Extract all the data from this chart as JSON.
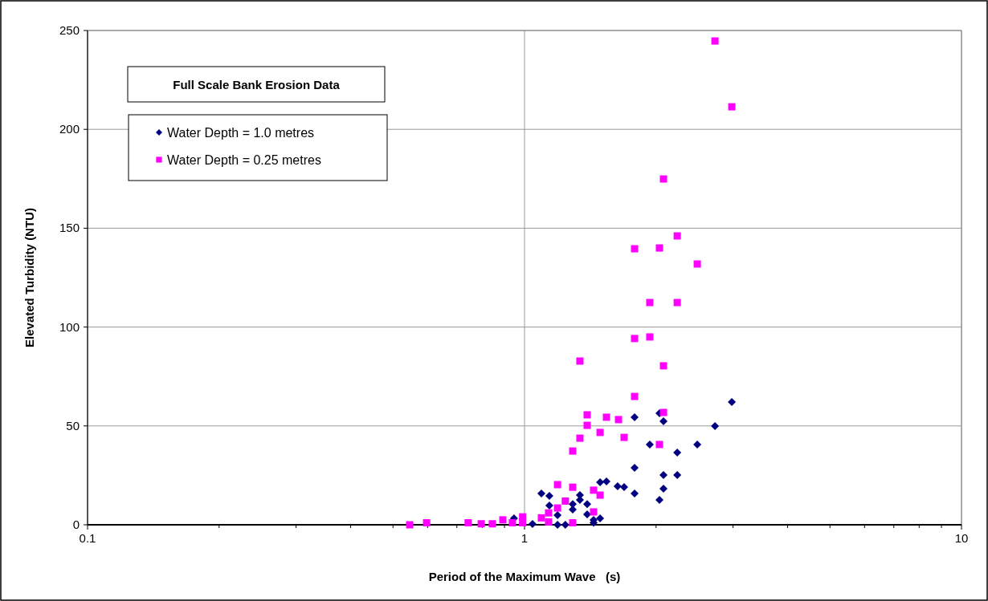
{
  "chart_data": {
    "type": "scatter",
    "title": "Full Scale Bank Erosion Data",
    "xlabel": "Period of the Maximum Wave   (s)",
    "ylabel": "Elevated Turbidity (NTU)",
    "log": "x",
    "xlim": [
      0.1,
      10
    ],
    "xticks": [
      0.1,
      {
        "value": 0.2,
        "label": null
      },
      {
        "value": 0.3,
        "label": null
      },
      {
        "value": 0.4,
        "label": null
      },
      {
        "value": 0.5,
        "label": null
      },
      {
        "value": 0.6,
        "label": null
      },
      {
        "value": 0.7,
        "label": null
      },
      {
        "value": 0.8,
        "label": null
      },
      {
        "value": 0.9,
        "label": null
      },
      1,
      {
        "value": 2,
        "label": null
      },
      {
        "value": 3,
        "label": null
      },
      {
        "value": 4,
        "label": null
      },
      {
        "value": 5,
        "label": null
      },
      {
        "value": 6,
        "label": null
      },
      {
        "value": 7,
        "label": null
      },
      {
        "value": 8,
        "label": null
      },
      {
        "value": 9,
        "label": null
      },
      10
    ],
    "ylim": [
      0,
      250
    ],
    "yticks": [
      0,
      50,
      100,
      150,
      200,
      250
    ],
    "grid": true,
    "legend": "top left",
    "series": [
      {
        "name": "Water Depth = 1.0 metres",
        "color": "#000080",
        "marker": "diamond",
        "x": [
          0.946,
          1.043,
          1.093,
          1.14,
          1.14,
          1.19,
          1.19,
          1.24,
          1.289,
          1.289,
          1.339,
          1.339,
          1.391,
          1.391,
          1.439,
          1.439,
          1.489,
          1.489,
          1.54,
          1.633,
          1.69,
          1.786,
          1.786,
          1.786,
          1.935,
          2.036,
          2.036,
          2.08,
          2.08,
          2.08,
          2.236,
          2.236,
          2.485,
          2.728,
          2.981
        ],
        "values": [
          3.2,
          0.4,
          15.8,
          14.6,
          9.7,
          4.9,
          0,
          0,
          10.5,
          7.7,
          15,
          12.6,
          10.5,
          5.3,
          2.4,
          1,
          3.2,
          21.5,
          21.9,
          19.5,
          19.1,
          54.4,
          28.8,
          15.8,
          40.6,
          56.4,
          12.6,
          52.4,
          25.2,
          18.3,
          36.5,
          25.2,
          40.6,
          49.9,
          62.1
        ]
      },
      {
        "name": "Water Depth = 0.25 metres",
        "color": "#ff00ff",
        "marker": "square",
        "x": [
          0.546,
          0.597,
          0.743,
          0.796,
          0.844,
          0.892,
          0.938,
          0.99,
          0.99,
          1.093,
          1.135,
          1.135,
          1.19,
          1.19,
          1.24,
          1.289,
          1.289,
          1.289,
          1.339,
          1.339,
          1.391,
          1.391,
          1.439,
          1.439,
          1.489,
          1.489,
          1.54,
          1.641,
          1.69,
          1.786,
          1.786,
          1.786,
          1.935,
          1.935,
          2.036,
          2.036,
          2.08,
          2.08,
          2.08,
          2.236,
          2.236,
          2.485,
          2.728,
          2.981
        ],
        "values": [
          0,
          1,
          1,
          0.5,
          0.5,
          2.5,
          1,
          4,
          1,
          3.5,
          6,
          1.5,
          8.5,
          20.3,
          12,
          19,
          1,
          37.3,
          43.8,
          82.8,
          55.6,
          50.3,
          17.5,
          6.5,
          15,
          46.7,
          54.4,
          53.2,
          44.2,
          64.9,
          94.2,
          139.6,
          95,
          112.4,
          140,
          40.6,
          80.4,
          56.8,
          174.9,
          112.4,
          146.1,
          131.9,
          244.7,
          211.4
        ]
      }
    ]
  }
}
